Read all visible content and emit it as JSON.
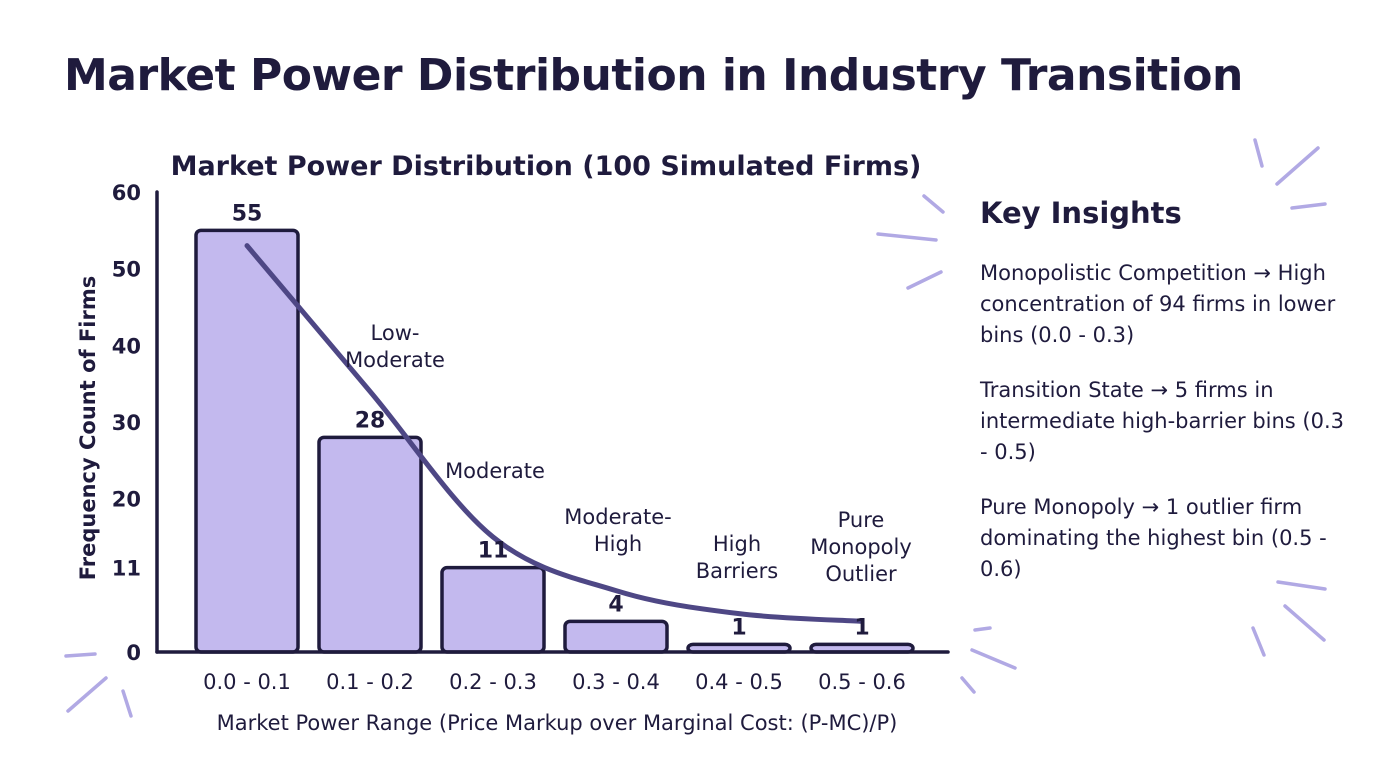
{
  "page_title": "Market Power Distribution in Industry Transition",
  "chart_data": {
    "type": "bar",
    "title": "Market Power Distribution (100 Simulated Firms)",
    "xlabel": "Market Power Range (Price Markup over Marginal Cost: (P-MC)/P)",
    "ylabel": "Frequency Count of Firms",
    "categories": [
      "0.0 - 0.1",
      "0.1 - 0.2",
      "0.2 - 0.3",
      "0.3 - 0.4",
      "0.4 - 0.5",
      "0.5 - 0.6"
    ],
    "values": [
      55,
      28,
      11,
      4,
      1,
      1
    ],
    "data_labels": [
      "55",
      "28",
      "11",
      "4",
      "1",
      "1"
    ],
    "annotations": [
      "",
      "Low-\nModerate",
      "Moderate",
      "Moderate-\nHigh",
      "High\nBarriers",
      "Pure\nMonopoly\nOutlier"
    ],
    "yticks": [
      0,
      11,
      20,
      30,
      40,
      50,
      60
    ],
    "ylim": [
      0,
      60
    ],
    "trend_line": {
      "x": [
        0,
        1,
        2,
        3,
        4,
        5
      ],
      "y": [
        53,
        34,
        15,
        8,
        5,
        4
      ]
    },
    "grid": false,
    "legend": "none",
    "colors": {
      "bar_fill": "#c3b9ee",
      "outline": "#1f1b3d",
      "trend": "#4e4785",
      "decoration": "#b1a9e4"
    }
  },
  "insights": {
    "title": "Key Insights",
    "items": [
      "Monopolistic Competition → High concentration of 94 firms in lower bins (0.0 - 0.3)",
      "Transition State → 5 firms in intermediate high-barrier bins (0.3 - 0.5)",
      "Pure Monopoly → 1 outlier firm dominating the highest bin (0.5 - 0.6)"
    ]
  }
}
